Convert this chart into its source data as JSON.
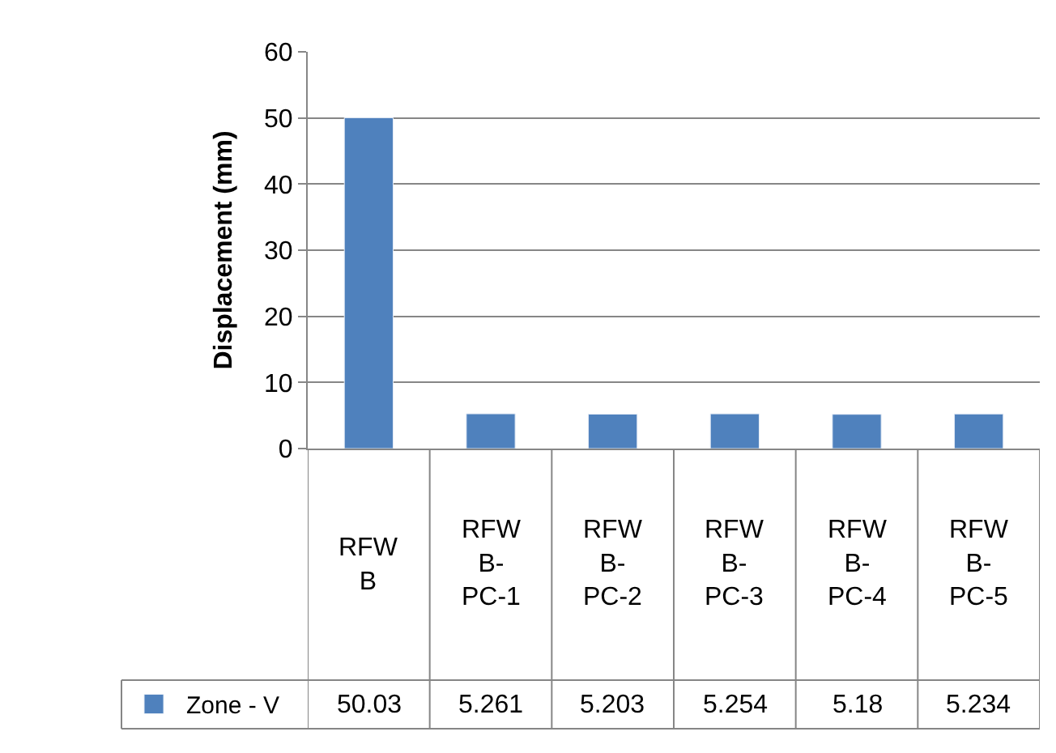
{
  "chart_data": {
    "type": "bar",
    "ylabel": "Displacement (mm)",
    "categories": [
      "RFWB",
      "RFWB-PC-1",
      "RFWB-PC-2",
      "RFWB-PC-3",
      "RFWB-PC-4",
      "RFWB-PC-5"
    ],
    "series": [
      {
        "name": "Zone - V",
        "color": "#4f81bd",
        "values": [
          50.03,
          5.261,
          5.203,
          5.254,
          5.18,
          5.234
        ]
      }
    ],
    "ylim": [
      0,
      60
    ],
    "yticks": [
      0,
      10,
      20,
      30,
      40,
      50,
      60
    ],
    "grid": "y",
    "data_labels": true,
    "legend": "bottom left"
  }
}
